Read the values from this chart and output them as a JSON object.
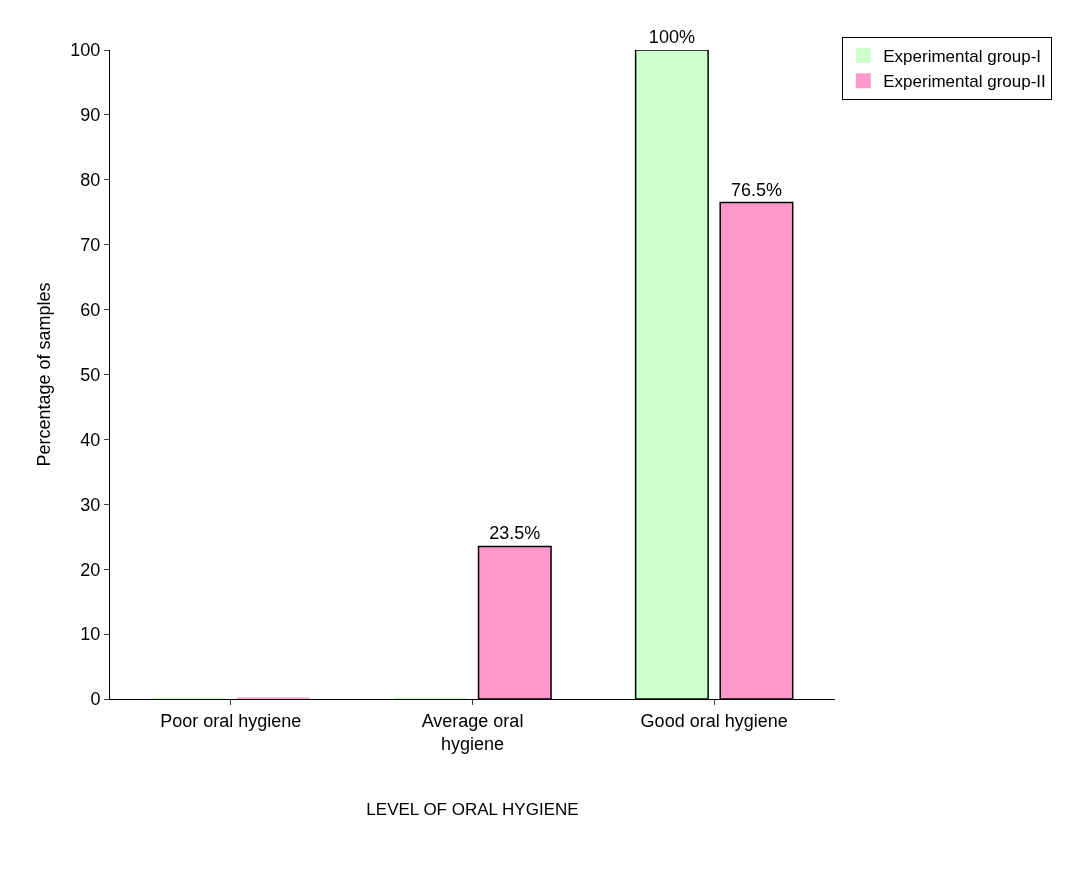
{
  "chart_data": {
    "type": "bar",
    "xlabel": "LEVEL OF ORAL HYGIENE",
    "ylabel": "Percentage of samples",
    "categories": [
      "Poor oral hygiene",
      "Average oral hygiene",
      "Good oral hygiene"
    ],
    "series": [
      {
        "name": "Experimental group-I",
        "color": "#ccffcc",
        "values": [
          0,
          0,
          100
        ],
        "value_labels": [
          null,
          null,
          "100%"
        ]
      },
      {
        "name": "Experimental group-II",
        "color": "#ff99cc",
        "values": [
          0,
          23.5,
          76.5
        ],
        "value_labels": [
          null,
          "23.5%",
          "76.5%"
        ]
      }
    ],
    "ylim": [
      0,
      100
    ],
    "yticks": [
      0,
      10,
      20,
      30,
      40,
      50,
      60,
      70,
      80,
      90,
      100
    ],
    "legend": "top right"
  }
}
